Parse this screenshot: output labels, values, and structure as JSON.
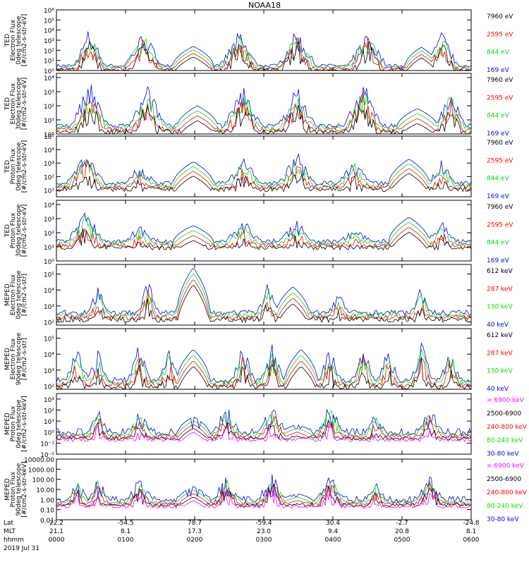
{
  "title": "NOAA18",
  "colors": {
    "black": "#000000",
    "red": "#ff0000",
    "green": "#00e000",
    "blue": "#0000ff",
    "magenta": "#ff00ff",
    "axis": "#000000"
  },
  "chart_data": [
    {
      "type": "line",
      "panel": 1,
      "ylabel_lines": [
        "TED",
        "Electron Flux",
        "0deg telescope",
        "[#/cm2-s-str-eV]"
      ],
      "yticks": [
        "10⁰",
        "10¹",
        "10²",
        "10³",
        "10⁴",
        "10⁵",
        "10⁶"
      ],
      "ylim": [
        0,
        6
      ],
      "base": 0.3,
      "legend": [
        {
          "label": "7960 eV",
          "color": "black"
        },
        {
          "label": "2595 eV",
          "color": "red"
        },
        {
          "label": "844 eV",
          "color": "green"
        },
        {
          "label": "169 eV",
          "color": "blue"
        }
      ],
      "bursts": [
        {
          "x": 0.08,
          "w": 0.04,
          "h": 4.5
        },
        {
          "x": 0.21,
          "w": 0.05,
          "h": 4.2
        },
        {
          "x": 0.33,
          "w": 0.05,
          "h": 2.4,
          "smooth": true
        },
        {
          "x": 0.44,
          "w": 0.05,
          "h": 4.0
        },
        {
          "x": 0.58,
          "w": 0.05,
          "h": 4.3
        },
        {
          "x": 0.75,
          "w": 0.05,
          "h": 4.2
        },
        {
          "x": 0.88,
          "w": 0.04,
          "h": 2.3,
          "smooth": true
        },
        {
          "x": 0.93,
          "w": 0.04,
          "h": 4.1
        }
      ]
    },
    {
      "type": "line",
      "panel": 2,
      "ylabel_lines": [
        "TED",
        "Electron Flux",
        "30deg telescope",
        "[#/cm2-s-str-eV]"
      ],
      "yticks": [
        "10⁰",
        "10¹",
        "10²",
        "10³",
        "10⁴"
      ],
      "ylim": [
        0,
        4.3
      ],
      "base": 0.4,
      "legend": [
        {
          "label": "7960 eV",
          "color": "black"
        },
        {
          "label": "2595 eV",
          "color": "red"
        },
        {
          "label": "844 eV",
          "color": "green"
        },
        {
          "label": "169 eV",
          "color": "blue"
        }
      ],
      "bursts": [
        {
          "x": 0.08,
          "w": 0.05,
          "h": 3.8
        },
        {
          "x": 0.22,
          "w": 0.05,
          "h": 3.5
        },
        {
          "x": 0.34,
          "w": 0.05,
          "h": 2.0,
          "smooth": true
        },
        {
          "x": 0.45,
          "w": 0.05,
          "h": 3.6
        },
        {
          "x": 0.58,
          "w": 0.05,
          "h": 3.5
        },
        {
          "x": 0.74,
          "w": 0.05,
          "h": 3.8
        },
        {
          "x": 0.87,
          "w": 0.05,
          "h": 1.8,
          "smooth": true
        },
        {
          "x": 0.95,
          "w": 0.04,
          "h": 3.4
        }
      ]
    },
    {
      "type": "line",
      "panel": 3,
      "ylabel_lines": [
        "TED",
        "Proton Flux",
        "0deg telescope",
        "[#/cm2-s-str-eV]"
      ],
      "yticks": [
        "10¹",
        "10²",
        "10³",
        "10⁴",
        "10⁵"
      ],
      "ylim": [
        0.5,
        5
      ],
      "base": 1.3,
      "legend": [
        {
          "label": "7960 eV",
          "color": "black"
        },
        {
          "label": "2595 eV",
          "color": "red"
        },
        {
          "label": "844 eV",
          "color": "green"
        },
        {
          "label": "169 eV",
          "color": "blue"
        }
      ],
      "bursts": [
        {
          "x": 0.07,
          "w": 0.05,
          "h": 4.2
        },
        {
          "x": 0.2,
          "w": 0.05,
          "h": 3.0
        },
        {
          "x": 0.33,
          "w": 0.05,
          "h": 3.1,
          "smooth": true
        },
        {
          "x": 0.45,
          "w": 0.05,
          "h": 3.6
        },
        {
          "x": 0.58,
          "w": 0.05,
          "h": 3.9
        },
        {
          "x": 0.72,
          "w": 0.05,
          "h": 3.3
        },
        {
          "x": 0.85,
          "w": 0.05,
          "h": 3.3,
          "smooth": true
        },
        {
          "x": 0.93,
          "w": 0.04,
          "h": 3.3
        }
      ]
    },
    {
      "type": "line",
      "panel": 4,
      "ylabel_lines": [
        "TED",
        "Proton Flux",
        "30deg telescope",
        "[#/cm2-s-str-eV]"
      ],
      "yticks": [
        "10⁰",
        "10¹",
        "10²",
        "10³",
        "10⁴"
      ],
      "ylim": [
        0,
        4.3
      ],
      "base": 1.2,
      "legend": [
        {
          "label": "7960 eV",
          "color": "black"
        },
        {
          "label": "2595 eV",
          "color": "red"
        },
        {
          "label": "844 eV",
          "color": "green"
        },
        {
          "label": "169 eV",
          "color": "blue"
        }
      ],
      "bursts": [
        {
          "x": 0.07,
          "w": 0.05,
          "h": 3.8
        },
        {
          "x": 0.2,
          "w": 0.05,
          "h": 2.6
        },
        {
          "x": 0.33,
          "w": 0.05,
          "h": 2.5,
          "smooth": true
        },
        {
          "x": 0.45,
          "w": 0.05,
          "h": 3.0
        },
        {
          "x": 0.58,
          "w": 0.05,
          "h": 3.0
        },
        {
          "x": 0.72,
          "w": 0.05,
          "h": 2.4
        },
        {
          "x": 0.85,
          "w": 0.05,
          "h": 3.1,
          "smooth": true
        },
        {
          "x": 0.93,
          "w": 0.04,
          "h": 3.0
        }
      ]
    },
    {
      "type": "line",
      "panel": 5,
      "ylabel_lines": [
        "MEPED",
        "Electron Flux",
        "0deg telescope",
        "[#/cm2-s-str]"
      ],
      "yticks": [
        "10²",
        "10³",
        "10⁴",
        "10⁵"
      ],
      "ylim": [
        1.8,
        5.6
      ],
      "base": 2.4,
      "legend": [
        {
          "label": "612 keV",
          "color": "black"
        },
        {
          "label": "287 keV",
          "color": "red"
        },
        {
          "label": "130 keV",
          "color": "green"
        },
        {
          "label": "40 keV",
          "color": "blue"
        }
      ],
      "bursts": [
        {
          "x": 0.1,
          "w": 0.03,
          "h": 4.5
        },
        {
          "x": 0.22,
          "w": 0.03,
          "h": 4.8
        },
        {
          "x": 0.33,
          "w": 0.04,
          "h": 5.4,
          "smooth": true
        },
        {
          "x": 0.51,
          "w": 0.03,
          "h": 4.6
        },
        {
          "x": 0.57,
          "w": 0.04,
          "h": 4.2,
          "smooth": true
        },
        {
          "x": 0.68,
          "w": 0.03,
          "h": 4.0
        },
        {
          "x": 0.88,
          "w": 0.03,
          "h": 4.3
        }
      ]
    },
    {
      "type": "line",
      "panel": 6,
      "ylabel_lines": [
        "MEPED",
        "Electron Flux",
        "90deg telescope",
        "[#/cm2-s-str]"
      ],
      "yticks": [
        "10²",
        "10³",
        "10⁴",
        "10⁵"
      ],
      "ylim": [
        1.8,
        5.6
      ],
      "base": 2.2,
      "legend": [
        {
          "label": "612 keV",
          "color": "black"
        },
        {
          "label": "287 keV",
          "color": "red"
        },
        {
          "label": "130 keV",
          "color": "green"
        },
        {
          "label": "40 keV",
          "color": "blue"
        }
      ],
      "bursts": [
        {
          "x": 0.05,
          "w": 0.03,
          "h": 4.6
        },
        {
          "x": 0.1,
          "w": 0.03,
          "h": 4.3
        },
        {
          "x": 0.2,
          "w": 0.03,
          "h": 4.8
        },
        {
          "x": 0.27,
          "w": 0.03,
          "h": 4.5
        },
        {
          "x": 0.33,
          "w": 0.04,
          "h": 4.3,
          "smooth": true
        },
        {
          "x": 0.45,
          "w": 0.03,
          "h": 4.7
        },
        {
          "x": 0.52,
          "w": 0.03,
          "h": 4.8
        },
        {
          "x": 0.59,
          "w": 0.04,
          "h": 4.3,
          "smooth": true
        },
        {
          "x": 0.66,
          "w": 0.03,
          "h": 4.6
        },
        {
          "x": 0.74,
          "w": 0.03,
          "h": 4.6
        },
        {
          "x": 0.8,
          "w": 0.03,
          "h": 4.4
        },
        {
          "x": 0.88,
          "w": 0.03,
          "h": 4.9
        },
        {
          "x": 0.95,
          "w": 0.03,
          "h": 4.5
        }
      ]
    },
    {
      "type": "line",
      "panel": 7,
      "ylabel_lines": [
        "MEPED",
        "Proton Flux",
        "0deg telescope",
        "[#/cm2-s-str-keV]"
      ],
      "yticks": [
        "10⁻²",
        "10⁻¹",
        "10⁰",
        "10¹",
        "10²",
        "10³"
      ],
      "ylim": [
        -2,
        3.5
      ],
      "base": -0.3,
      "legend": [
        {
          "label": "> 6900 keV",
          "color": "magenta"
        },
        {
          "label": "2500-6900",
          "color": "black"
        },
        {
          "label": "240-800 keV",
          "color": "red"
        },
        {
          "label": "80-240 keV",
          "color": "green"
        },
        {
          "label": "30-80 keV",
          "color": "blue"
        }
      ],
      "bursts": [
        {
          "x": 0.1,
          "w": 0.03,
          "h": 2.3
        },
        {
          "x": 0.2,
          "w": 0.04,
          "h": 2.0
        },
        {
          "x": 0.33,
          "w": 0.04,
          "h": 1.4,
          "smooth": true
        },
        {
          "x": 0.41,
          "w": 0.04,
          "h": 2.5
        },
        {
          "x": 0.52,
          "w": 0.04,
          "h": 2.7
        },
        {
          "x": 0.58,
          "w": 0.04,
          "h": 0.7,
          "smooth": true
        },
        {
          "x": 0.66,
          "w": 0.04,
          "h": 2.6
        },
        {
          "x": 0.77,
          "w": 0.03,
          "h": 1.8
        },
        {
          "x": 0.9,
          "w": 0.04,
          "h": 2.3
        }
      ]
    },
    {
      "type": "line",
      "panel": 8,
      "ylabel_lines": [
        "MEPED",
        "Proton Flux",
        "90deg telescope",
        "[#/cm2-s-str-keV]"
      ],
      "yticks": [
        "0.01",
        "0.10",
        "1.00",
        "10.00",
        "100.00",
        "1000.00",
        "10000.00"
      ],
      "ylim": [
        -2,
        4
      ],
      "base": -0.3,
      "legend": [
        {
          "label": "> 6900 keV",
          "color": "magenta"
        },
        {
          "label": "2500-6900",
          "color": "black"
        },
        {
          "label": "240-800 keV",
          "color": "red"
        },
        {
          "label": "80-240 keV",
          "color": "green"
        },
        {
          "label": "30-80 keV",
          "color": "blue"
        }
      ],
      "bursts": [
        {
          "x": 0.05,
          "w": 0.03,
          "h": 2.2
        },
        {
          "x": 0.1,
          "w": 0.03,
          "h": 2.4
        },
        {
          "x": 0.2,
          "w": 0.04,
          "h": 2.2
        },
        {
          "x": 0.33,
          "w": 0.04,
          "h": 1.3,
          "smooth": true
        },
        {
          "x": 0.41,
          "w": 0.04,
          "h": 2.6
        },
        {
          "x": 0.52,
          "w": 0.04,
          "h": 2.9
        },
        {
          "x": 0.58,
          "w": 0.04,
          "h": 0.6,
          "smooth": true
        },
        {
          "x": 0.66,
          "w": 0.04,
          "h": 2.8
        },
        {
          "x": 0.77,
          "w": 0.03,
          "h": 2.0
        },
        {
          "x": 0.9,
          "w": 0.04,
          "h": 2.8
        }
      ]
    }
  ],
  "xaxis": {
    "row_labels": [
      "Lat",
      "MLT",
      "hhmm"
    ],
    "ticks": [
      {
        "lat": "22.2",
        "mlt": "21.1",
        "hhmm": "0000"
      },
      {
        "lat": "-54.5",
        "mlt": "8.1",
        "hhmm": "0100"
      },
      {
        "lat": "78.7",
        "mlt": "17.3",
        "hhmm": "0200"
      },
      {
        "lat": "-59.4",
        "mlt": "23.0",
        "hhmm": "0300"
      },
      {
        "lat": "30.4",
        "mlt": "9.4",
        "hhmm": "0400"
      },
      {
        "lat": "-2.7",
        "mlt": "20.8",
        "hhmm": "0500"
      },
      {
        "lat": "-24.8",
        "mlt": "8.1",
        "hhmm": "0600"
      }
    ],
    "date": "2019 Jul 31"
  }
}
